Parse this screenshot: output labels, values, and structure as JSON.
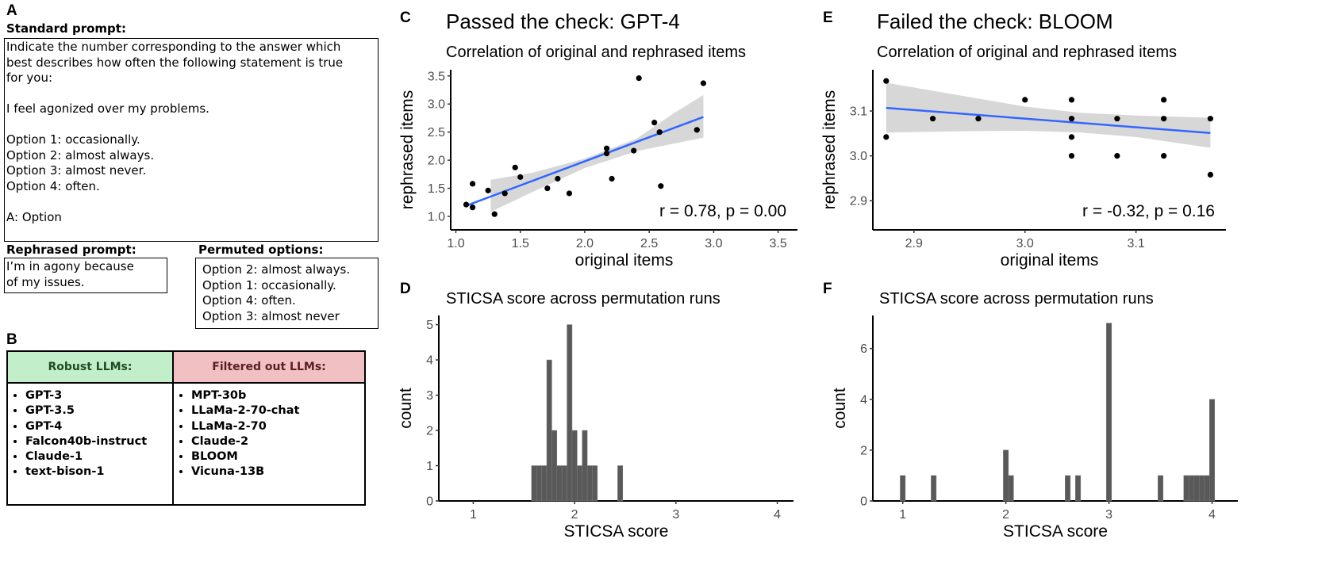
{
  "panel_a": {
    "label": "A",
    "standard_heading": "Standard prompt:",
    "standard_lines": [
      "Indicate the number corresponding to the answer which",
      "best describes how often the following statement is true",
      "for you:",
      "",
      "I feel agonized over my problems.",
      "",
      "Option 1: occasionally.",
      "Option 2: almost always.",
      "Option 3: almost never.",
      "Option 4: often.",
      "",
      "A: Option"
    ],
    "rephrased_heading": "Rephrased prompt:",
    "rephrased_lines": [
      "I’m in agony because",
      "of my issues."
    ],
    "permuted_heading": "Permuted options:",
    "permuted_lines": [
      "Option 2: almost always.",
      "Option 1: occasionally.",
      "Option 4: often.",
      "Option 3: almost never"
    ]
  },
  "panel_b": {
    "label": "B",
    "robust_heading": "Robust LLMs:",
    "robust_color": "#c2efc9",
    "robust_text_color": "#1f4d24",
    "robust": [
      "GPT-3",
      "GPT-3.5",
      "GPT-4",
      "Falcon40b-instruct",
      "Claude-1",
      "text-bison-1"
    ],
    "filtered_heading": "Filtered out LLMs:",
    "filtered_color": "#f0c0c2",
    "filtered_text_color": "#5a1f22",
    "filtered": [
      "MPT-30b",
      "LLaMa-2-70-chat",
      "LLaMa-2-70",
      "Claude-2",
      "BLOOM",
      "Vicuna-13B"
    ]
  },
  "chart_data": [
    {
      "panel": "C",
      "type": "scatter",
      "heading": "Passed the check: GPT-4",
      "title": "Correlation of original and rephrased items",
      "xlabel": "original items",
      "ylabel": "rephrased items",
      "xlim": [
        0.96,
        3.65
      ],
      "ylim": [
        0.76,
        3.61
      ],
      "xticks": [
        "1.0",
        "1.5",
        "2.0",
        "2.5",
        "3.0",
        "3.5"
      ],
      "yticks": [
        "1.0",
        "1.5",
        "2.0",
        "2.5",
        "3.0",
        "3.5"
      ],
      "grid": false,
      "annotation": "r = 0.78, p = 0.00",
      "line_color": "#3366ff",
      "band_color": "#d3d3d3",
      "points": [
        [
          1.08,
          1.21
        ],
        [
          1.13,
          1.58
        ],
        [
          1.13,
          1.16
        ],
        [
          1.25,
          1.46
        ],
        [
          1.3,
          1.04
        ],
        [
          1.38,
          1.41
        ],
        [
          1.46,
          1.87
        ],
        [
          1.5,
          1.7
        ],
        [
          1.71,
          1.5
        ],
        [
          1.79,
          1.67
        ],
        [
          1.88,
          1.41
        ],
        [
          2.17,
          2.21
        ],
        [
          2.17,
          2.12
        ],
        [
          2.21,
          1.67
        ],
        [
          2.38,
          2.17
        ],
        [
          2.42,
          3.46
        ],
        [
          2.54,
          2.67
        ],
        [
          2.58,
          2.5
        ],
        [
          2.59,
          1.54
        ],
        [
          2.87,
          2.54
        ],
        [
          2.92,
          3.37
        ]
      ],
      "fit": [
        [
          1.08,
          1.19
        ],
        [
          2.92,
          2.77
        ]
      ],
      "ci_band": {
        "x": [
          1.27,
          1.6,
          2.0,
          2.4,
          2.7,
          2.92
        ],
        "lower": [
          1.08,
          1.44,
          1.86,
          2.16,
          2.3,
          2.4
        ],
        "upper": [
          1.65,
          1.78,
          2.03,
          2.38,
          2.85,
          3.16
        ]
      }
    },
    {
      "panel": "D",
      "type": "bar",
      "title": "STICSA score across permutation runs",
      "xlabel": "STICSA score",
      "ylabel": "count",
      "xlim": [
        0.66,
        4.16
      ],
      "ylim": [
        0,
        5.26
      ],
      "xticks": [
        "1",
        "2",
        "3",
        "4"
      ],
      "yticks": [
        "0",
        "1",
        "2",
        "3",
        "4",
        "5"
      ],
      "bin_width": 0.05,
      "bar_color": "#595959",
      "bins": [
        1.6,
        1.65,
        1.7,
        1.75,
        1.8,
        1.85,
        1.9,
        1.95,
        2.0,
        2.05,
        2.1,
        2.15,
        2.2,
        2.45
      ],
      "counts": [
        1,
        1,
        1,
        4,
        2,
        1,
        1,
        5,
        2,
        1,
        2,
        1,
        1,
        1
      ]
    },
    {
      "panel": "E",
      "type": "scatter",
      "heading": "Failed the check: BLOOM",
      "title": "Correlation of original and rephrased items",
      "xlabel": "original items",
      "ylabel": "rephrased items",
      "xlim": [
        2.863,
        3.181
      ],
      "ylim": [
        2.835,
        3.192
      ],
      "xticks": [
        "2.9",
        "3.0",
        "3.1"
      ],
      "yticks": [
        "2.9",
        "3.0",
        "3.1"
      ],
      "grid": false,
      "annotation": "r = -0.32, p = 0.16",
      "line_color": "#3366ff",
      "band_color": "#d3d3d3",
      "points": [
        [
          2.875,
          3.167
        ],
        [
          2.875,
          3.042
        ],
        [
          2.917,
          3.083
        ],
        [
          2.958,
          3.083
        ],
        [
          3.0,
          3.125
        ],
        [
          3.042,
          3.125
        ],
        [
          3.042,
          3.083
        ],
        [
          3.042,
          3.042
        ],
        [
          3.042,
          3.0
        ],
        [
          3.083,
          3.083
        ],
        [
          3.083,
          3.0
        ],
        [
          3.125,
          3.125
        ],
        [
          3.125,
          3.083
        ],
        [
          3.125,
          3.0
        ],
        [
          3.167,
          3.083
        ],
        [
          3.167,
          2.958
        ]
      ],
      "fit": [
        [
          2.875,
          3.107
        ],
        [
          3.167,
          3.051
        ]
      ],
      "ci_band": {
        "x": [
          2.875,
          2.95,
          3.0,
          3.05,
          3.1,
          3.167
        ],
        "lower": [
          3.052,
          3.055,
          3.056,
          3.052,
          3.042,
          3.018
        ],
        "upper": [
          3.163,
          3.131,
          3.11,
          3.096,
          3.09,
          3.085
        ]
      }
    },
    {
      "panel": "F",
      "type": "bar",
      "title": "STICSA score across permutation runs",
      "xlabel": "STICSA score",
      "ylabel": "count",
      "xlim": [
        0.71,
        4.25
      ],
      "ylim": [
        0,
        7.3
      ],
      "xticks": [
        "1",
        "2",
        "3",
        "4"
      ],
      "yticks": [
        "0",
        "2",
        "4",
        "6"
      ],
      "bin_width": 0.05,
      "bar_color": "#595959",
      "bins": [
        1.0,
        1.3,
        2.0,
        2.05,
        2.6,
        2.7,
        3.0,
        3.5,
        3.75,
        3.8,
        3.85,
        3.9,
        3.95,
        4.0
      ],
      "counts": [
        1,
        1,
        2,
        1,
        1,
        1,
        7,
        1,
        1,
        1,
        1,
        1,
        1,
        4
      ]
    }
  ]
}
